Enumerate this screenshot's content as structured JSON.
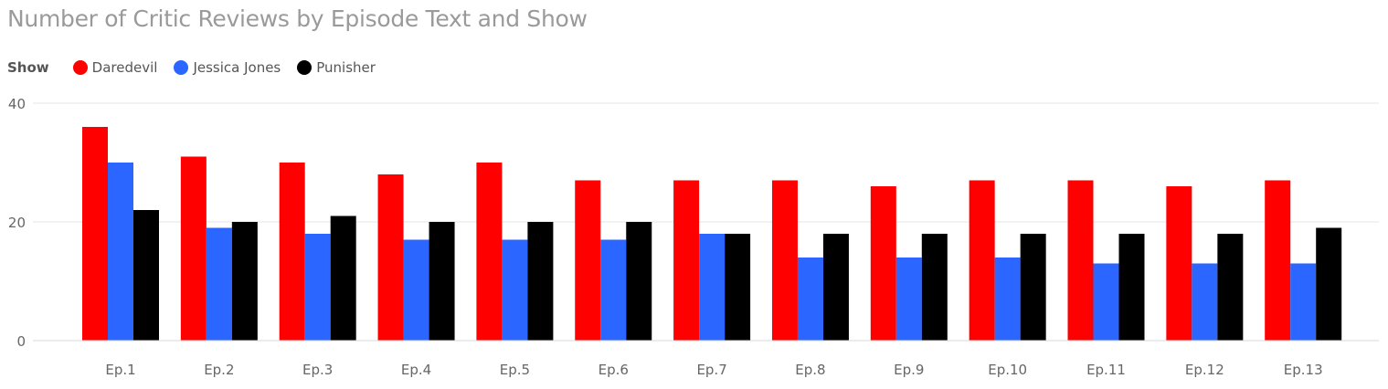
{
  "title": "Number of Critic Reviews by Episode Text and Show",
  "legend": {
    "title": "Show",
    "items": [
      {
        "label": "Daredevil",
        "color": "#ff0000"
      },
      {
        "label": "Jessica Jones",
        "color": "#2a66ff"
      },
      {
        "label": "Punisher",
        "color": "#000000"
      }
    ]
  },
  "chart_data": {
    "type": "bar",
    "title": "Number of Critic Reviews by Episode Text and Show",
    "xlabel": "",
    "ylabel": "",
    "ylim": [
      0,
      40
    ],
    "yticks": [
      0,
      20,
      40
    ],
    "grid": true,
    "legend_position": "top-left",
    "categories": [
      "Ep.1",
      "Ep.2",
      "Ep.3",
      "Ep.4",
      "Ep.5",
      "Ep.6",
      "Ep.7",
      "Ep.8",
      "Ep.9",
      "Ep.10",
      "Ep.11",
      "Ep.12",
      "Ep.13"
    ],
    "series": [
      {
        "name": "Daredevil",
        "color": "#ff0000",
        "values": [
          36,
          31,
          30,
          28,
          30,
          27,
          27,
          27,
          26,
          27,
          27,
          26,
          27
        ]
      },
      {
        "name": "Jessica Jones",
        "color": "#2a66ff",
        "values": [
          30,
          19,
          18,
          17,
          17,
          17,
          18,
          14,
          14,
          14,
          13,
          13,
          13
        ]
      },
      {
        "name": "Punisher",
        "color": "#000000",
        "values": [
          22,
          20,
          21,
          20,
          20,
          20,
          18,
          18,
          18,
          18,
          18,
          18,
          19
        ]
      }
    ]
  }
}
